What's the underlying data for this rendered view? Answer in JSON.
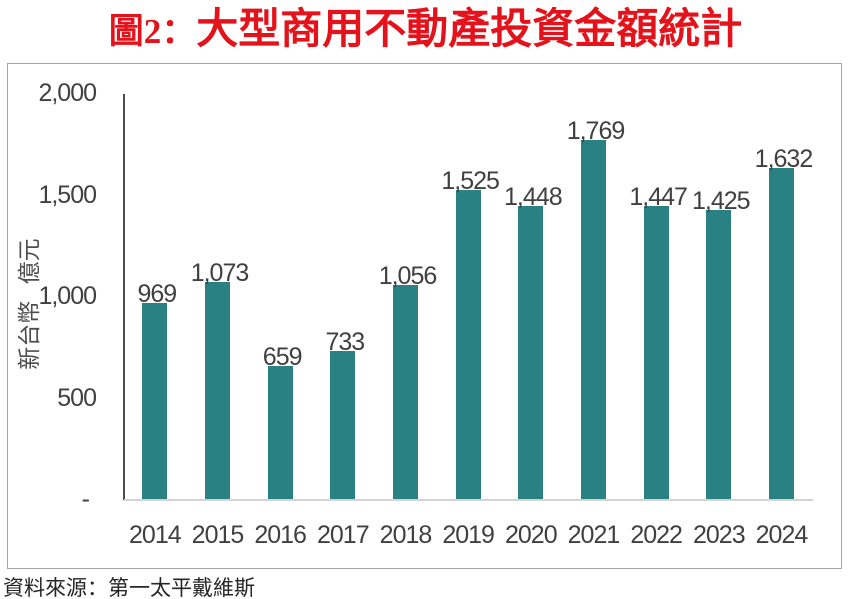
{
  "title": {
    "prefix": "圖2：",
    "main": "大型商用不動產投資金額統計",
    "color": "#e4131b"
  },
  "chart_data": {
    "type": "bar",
    "title": "圖2：大型商用不動產投資金額統計",
    "categories": [
      "2014",
      "2015",
      "2016",
      "2017",
      "2018",
      "2019",
      "2020",
      "2021",
      "2022",
      "2023",
      "2024"
    ],
    "values": [
      969,
      1073,
      659,
      733,
      1056,
      1525,
      1448,
      1769,
      1447,
      1425,
      1632
    ],
    "value_labels": [
      "969",
      "1,073",
      "659",
      "733",
      "1,056",
      "1,525",
      "1,448",
      "1,769",
      "1,447",
      "1,425",
      "1,632"
    ],
    "xlabel": "",
    "ylabel": "新台幣 億元",
    "ylim": [
      0,
      2000
    ],
    "y_ticks": {
      "values": [
        2000,
        1500,
        1000,
        500,
        0
      ],
      "labels": [
        "2,000",
        "1,500",
        "1,000",
        "500",
        "-"
      ]
    },
    "bar_color": "#2a8184",
    "grid": false,
    "legend": false
  },
  "source_note": {
    "text": "資料來源：第一太平戴維斯"
  }
}
